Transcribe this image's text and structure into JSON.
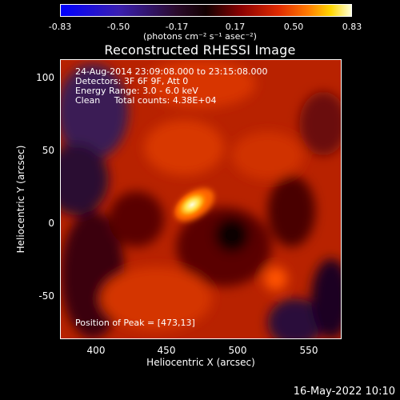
{
  "colorbar": {
    "ticks": [
      "-0.83",
      "-0.50",
      "-0.17",
      "0.17",
      "0.50",
      "0.83"
    ],
    "units": "(photons cm⁻² s⁻¹ asec⁻²)"
  },
  "title": "Reconstructed RHESSI Image",
  "overlay": {
    "line1": "24-Aug-2014 23:09:08.000 to 23:15:08.000",
    "line2": "Detectors: 3F 6F 9F, Att 0",
    "line3": "Energy Range: 3.0 - 6.0 keV",
    "line4": "Clean     Total counts: 4.38E+04",
    "peak": "Position of Peak = [473,13]"
  },
  "axes": {
    "xlabel": "Heliocentric X (arcsec)",
    "ylabel": "Heliocentric Y (arcsec)",
    "xticks": [
      "400",
      "450",
      "500",
      "550"
    ],
    "yticks": [
      "100",
      "50",
      "0",
      "-50"
    ]
  },
  "timestamp": "16-May-2022 10:10",
  "chart_data": {
    "type": "heatmap",
    "title": "Reconstructed RHESSI Image",
    "xlabel": "Heliocentric X (arcsec)",
    "ylabel": "Heliocentric Y (arcsec)",
    "xlim": [
      377,
      570
    ],
    "ylim": [
      -80,
      112
    ],
    "color_range": [
      -0.83,
      0.83
    ],
    "colorbar_ticks": [
      -0.83,
      -0.5,
      -0.17,
      0.17,
      0.5,
      0.83
    ],
    "peak": {
      "x": 473,
      "y": 13
    }
  }
}
